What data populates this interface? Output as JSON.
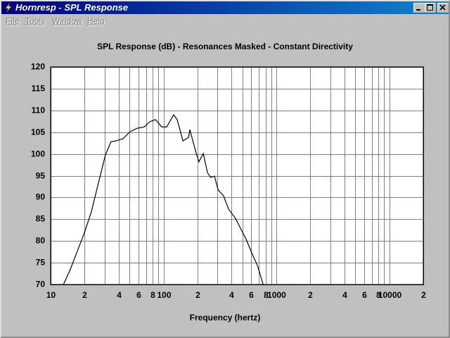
{
  "window": {
    "title": "Hornresp - SPL Response",
    "menu": [
      "File",
      "Tools",
      "Window",
      "Help"
    ]
  },
  "chart_data": {
    "type": "line",
    "title": "SPL Response (dB) - Resonances Masked - Constant Directivity",
    "x_label": "Frequency (hertz)",
    "xscale": "log",
    "grid": true,
    "xlim": [
      10,
      20000
    ],
    "ylim": [
      70,
      120
    ],
    "yticks": [
      70,
      75,
      80,
      85,
      90,
      95,
      100,
      105,
      110,
      115,
      120
    ],
    "xticks": [
      10,
      {
        "value": 20,
        "label": "2"
      },
      {
        "value": 40,
        "label": "4"
      },
      {
        "value": 60,
        "label": "6"
      },
      {
        "value": 80,
        "label": "8"
      },
      100,
      {
        "value": 200,
        "label": "2"
      },
      {
        "value": 400,
        "label": "4"
      },
      {
        "value": 600,
        "label": "6"
      },
      {
        "value": 800,
        "label": "8"
      },
      1000,
      {
        "value": 2000,
        "label": "2"
      },
      {
        "value": 4000,
        "label": "4"
      },
      {
        "value": 6000,
        "label": "6"
      },
      {
        "value": 8000,
        "label": "8"
      },
      10000,
      {
        "value": 20000,
        "label": "2"
      }
    ],
    "x_minor_grid": [
      30,
      50,
      70,
      90,
      300,
      500,
      700,
      900,
      3000,
      5000,
      7000,
      9000
    ],
    "color": "#000000",
    "x": [
      13.0,
      14.9,
      20.0,
      23.0,
      26.5,
      30.6,
      34.3,
      37.9,
      43.8,
      50.5,
      58.3,
      67.4,
      75.6,
      84.8,
      96.6,
      106.7,
      123,
      132,
      148.6,
      167,
      171,
      195,
      206,
      225,
      245,
      262,
      283,
      305,
      340,
      377,
      434,
      501,
      539,
      608,
      683,
      763
    ],
    "values": [
      70.0,
      73.4,
      82.0,
      86.8,
      93.3,
      99.8,
      102.8,
      103.0,
      103.5,
      105.1,
      105.9,
      106.2,
      107.4,
      107.9,
      106.2,
      106.2,
      109.0,
      107.9,
      103.0,
      103.8,
      105.6,
      100.1,
      98.2,
      100.1,
      95.7,
      94.6,
      94.9,
      91.7,
      90.4,
      87.3,
      85.2,
      82.0,
      80.4,
      77.1,
      74.2,
      70.0
    ]
  }
}
